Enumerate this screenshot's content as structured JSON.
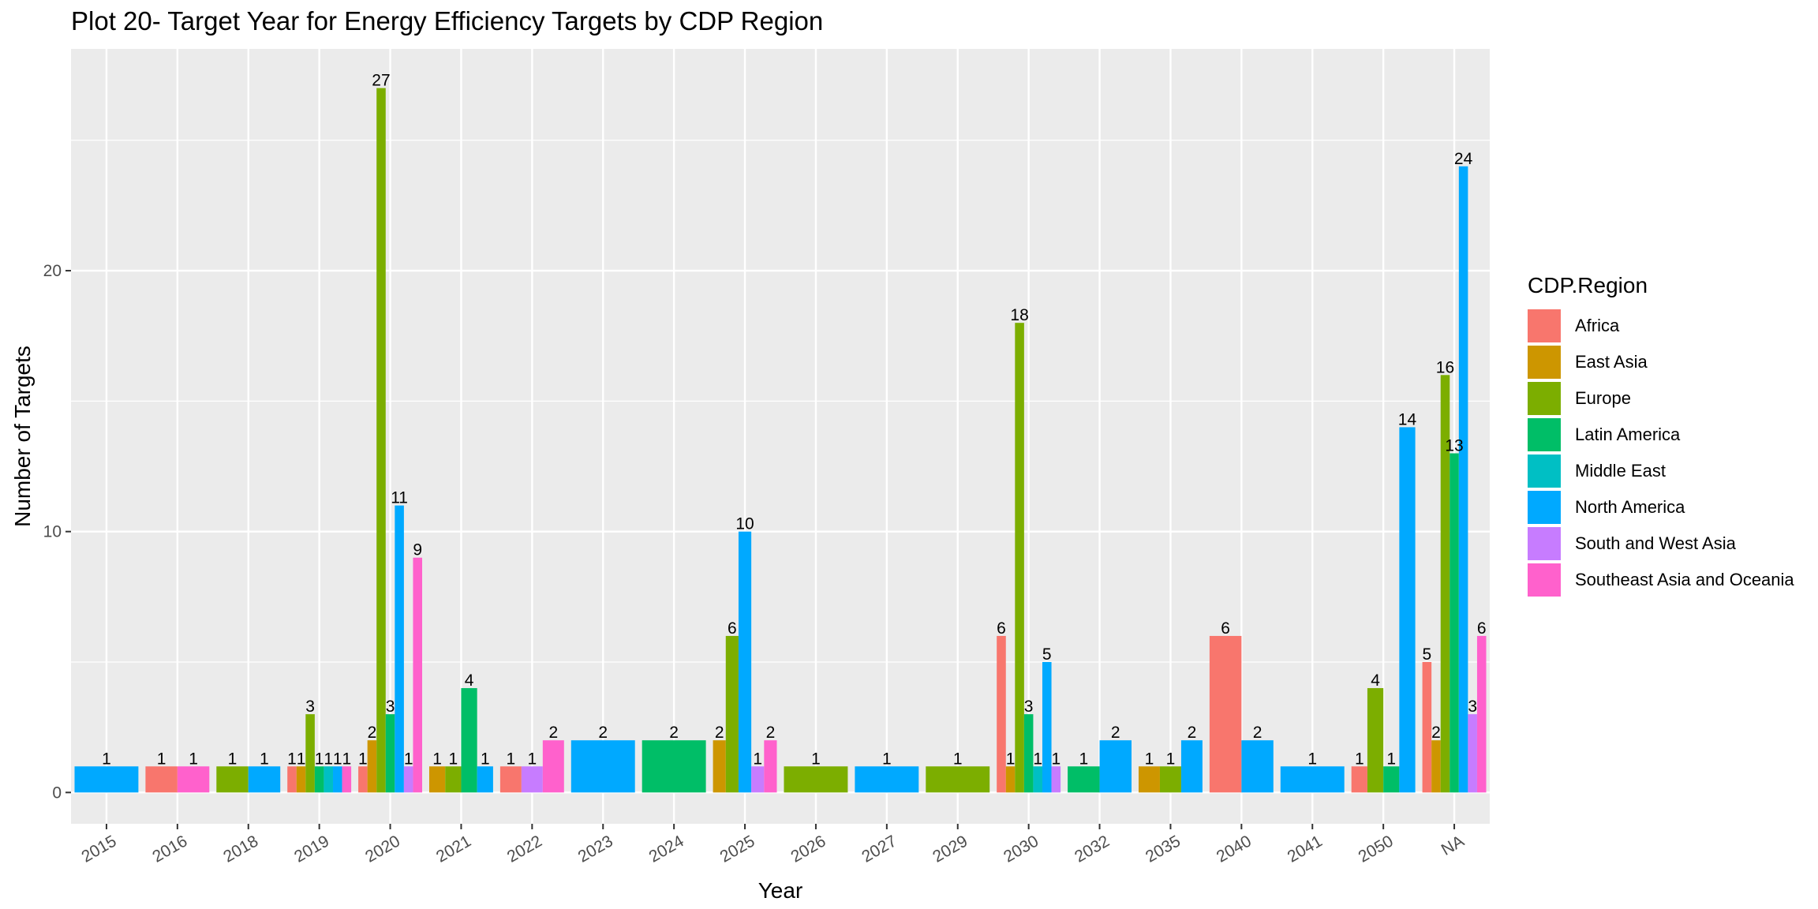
{
  "chart_data": {
    "type": "bar",
    "title": "Plot 20- Target Year for Energy Efficiency Targets by CDP Region",
    "xlabel": "Year",
    "ylabel": "Number of Targets",
    "ylim": [
      -1.2,
      28.5
    ],
    "yticks": [
      0,
      10,
      20
    ],
    "grid": true,
    "legend_title": "CDP.Region",
    "legend_position": "right",
    "categories": [
      "2015",
      "2016",
      "2018",
      "2019",
      "2020",
      "2021",
      "2022",
      "2023",
      "2024",
      "2025",
      "2026",
      "2027",
      "2029",
      "2030",
      "2032",
      "2035",
      "2040",
      "2041",
      "2050",
      "NA"
    ],
    "regions": [
      {
        "name": "Africa",
        "color": "#F8766D"
      },
      {
        "name": "East Asia",
        "color": "#CD9600"
      },
      {
        "name": "Europe",
        "color": "#7CAE00"
      },
      {
        "name": "Latin America",
        "color": "#00BE67"
      },
      {
        "name": "Middle East",
        "color": "#00BFC4"
      },
      {
        "name": "North America",
        "color": "#00A9FF"
      },
      {
        "name": "South and West Asia",
        "color": "#C77CFF"
      },
      {
        "name": "Southeast Asia and Oceania",
        "color": "#FF61CC"
      }
    ],
    "groups": [
      {
        "category": "2015",
        "bars": [
          {
            "region": "North America",
            "value": 1
          }
        ]
      },
      {
        "category": "2016",
        "bars": [
          {
            "region": "Africa",
            "value": 1
          },
          {
            "region": "Southeast Asia and Oceania",
            "value": 1
          }
        ]
      },
      {
        "category": "2018",
        "bars": [
          {
            "region": "Europe",
            "value": 1
          },
          {
            "region": "North America",
            "value": 1
          }
        ]
      },
      {
        "category": "2019",
        "bars": [
          {
            "region": "Africa",
            "value": 1
          },
          {
            "region": "East Asia",
            "value": 1
          },
          {
            "region": "Europe",
            "value": 3
          },
          {
            "region": "Latin America",
            "value": 1
          },
          {
            "region": "Middle East",
            "value": 1
          },
          {
            "region": "North America",
            "value": 1
          },
          {
            "region": "Southeast Asia and Oceania",
            "value": 1
          }
        ]
      },
      {
        "category": "2020",
        "bars": [
          {
            "region": "Africa",
            "value": 1
          },
          {
            "region": "East Asia",
            "value": 2
          },
          {
            "region": "Europe",
            "value": 27
          },
          {
            "region": "Latin America",
            "value": 3
          },
          {
            "region": "North America",
            "value": 11
          },
          {
            "region": "South and West Asia",
            "value": 1
          },
          {
            "region": "Southeast Asia and Oceania",
            "value": 9
          }
        ]
      },
      {
        "category": "2021",
        "bars": [
          {
            "region": "East Asia",
            "value": 1
          },
          {
            "region": "Europe",
            "value": 1
          },
          {
            "region": "Latin America",
            "value": 4
          },
          {
            "region": "North America",
            "value": 1
          }
        ]
      },
      {
        "category": "2022",
        "bars": [
          {
            "region": "Africa",
            "value": 1
          },
          {
            "region": "South and West Asia",
            "value": 1
          },
          {
            "region": "Southeast Asia and Oceania",
            "value": 2
          }
        ]
      },
      {
        "category": "2023",
        "bars": [
          {
            "region": "North America",
            "value": 2
          }
        ]
      },
      {
        "category": "2024",
        "bars": [
          {
            "region": "Latin America",
            "value": 2
          }
        ]
      },
      {
        "category": "2025",
        "bars": [
          {
            "region": "East Asia",
            "value": 2
          },
          {
            "region": "Europe",
            "value": 6
          },
          {
            "region": "North America",
            "value": 10
          },
          {
            "region": "South and West Asia",
            "value": 1
          },
          {
            "region": "Southeast Asia and Oceania",
            "value": 2
          }
        ]
      },
      {
        "category": "2026",
        "bars": [
          {
            "region": "Europe",
            "value": 1
          }
        ]
      },
      {
        "category": "2027",
        "bars": [
          {
            "region": "North America",
            "value": 1
          }
        ]
      },
      {
        "category": "2029",
        "bars": [
          {
            "region": "Europe",
            "value": 1
          }
        ]
      },
      {
        "category": "2030",
        "bars": [
          {
            "region": "Africa",
            "value": 6
          },
          {
            "region": "East Asia",
            "value": 1
          },
          {
            "region": "Europe",
            "value": 18
          },
          {
            "region": "Latin America",
            "value": 3
          },
          {
            "region": "Middle East",
            "value": 1
          },
          {
            "region": "North America",
            "value": 5
          },
          {
            "region": "South and West Asia",
            "value": 1
          }
        ]
      },
      {
        "category": "2032",
        "bars": [
          {
            "region": "Latin America",
            "value": 1
          },
          {
            "region": "North America",
            "value": 2
          }
        ]
      },
      {
        "category": "2035",
        "bars": [
          {
            "region": "East Asia",
            "value": 1
          },
          {
            "region": "Europe",
            "value": 1
          },
          {
            "region": "North America",
            "value": 2
          }
        ]
      },
      {
        "category": "2040",
        "bars": [
          {
            "region": "Africa",
            "value": 6
          },
          {
            "region": "North America",
            "value": 2
          }
        ]
      },
      {
        "category": "2041",
        "bars": [
          {
            "region": "North America",
            "value": 1
          }
        ]
      },
      {
        "category": "2050",
        "bars": [
          {
            "region": "Africa",
            "value": 1
          },
          {
            "region": "Europe",
            "value": 4
          },
          {
            "region": "Latin America",
            "value": 1
          },
          {
            "region": "North America",
            "value": 14
          }
        ]
      },
      {
        "category": "NA",
        "bars": [
          {
            "region": "Africa",
            "value": 5
          },
          {
            "region": "East Asia",
            "value": 2
          },
          {
            "region": "Europe",
            "value": 16
          },
          {
            "region": "Latin America",
            "value": 13
          },
          {
            "region": "North America",
            "value": 24
          },
          {
            "region": "South and West Asia",
            "value": 3
          },
          {
            "region": "Southeast Asia and Oceania",
            "value": 6
          }
        ]
      }
    ]
  }
}
